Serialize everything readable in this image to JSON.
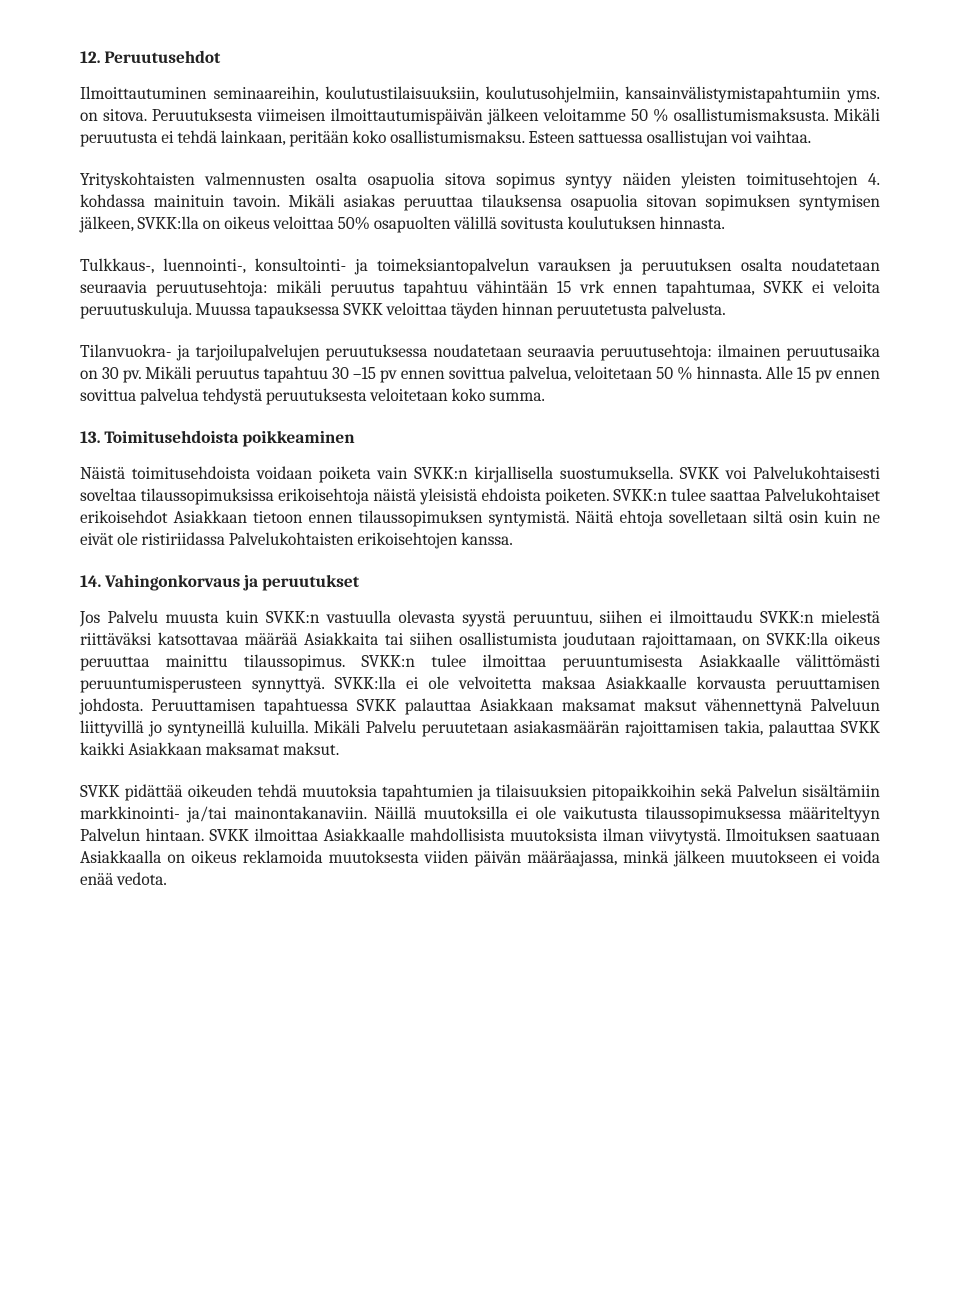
{
  "s12": {
    "heading": "12. Peruutusehdot",
    "p1": "Ilmoittautuminen seminaareihin, koulutustilaisuuksiin, koulutusohjelmiin, kansainvälistymistapahtumiin yms. on sitova. Peruutuksesta viimeisen ilmoittautumispäivän jälkeen veloitamme 50 % osallistumismaksusta. Mikäli peruutusta ei tehdä lainkaan, peritään koko osallistumismaksu. Esteen sattuessa osallistujan voi vaihtaa.",
    "p2": "Yrityskohtaisten valmennusten osalta osapuolia sitova sopimus syntyy näiden yleisten toimitusehtojen 4. kohdassa mainituin tavoin. Mikäli asiakas peruuttaa tilauksensa osapuolia sitovan sopimuksen syntymisen jälkeen, SVKK:lla on oikeus veloittaa 50% osapuolten välillä sovitusta koulutuksen hinnasta.",
    "p3": "Tulkkaus-, luennointi-, konsultointi- ja toimeksiantopalvelun varauksen ja peruutuksen osalta noudatetaan seuraavia peruutusehtoja: mikäli peruutus tapahtuu vähintään 15 vrk ennen tapahtumaa, SVKK ei veloita peruutuskuluja. Muussa tapauksessa SVKK veloittaa täyden hinnan peruutetusta palvelusta.",
    "p4": "Tilanvuokra- ja tarjoilupalvelujen peruutuksessa noudatetaan seuraavia peruutusehtoja: ilmainen peruutusaika on 30 pv. Mikäli peruutus tapahtuu 30 –15 pv ennen sovittua palvelua, veloitetaan 50 % hinnasta. Alle 15 pv ennen sovittua palvelua tehdystä peruutuksesta veloitetaan koko summa."
  },
  "s13": {
    "heading": "13. Toimitusehdoista poikkeaminen",
    "p1": "Näistä toimitusehdoista voidaan poiketa vain SVKK:n kirjallisella suostumuksella. SVKK voi Palvelukohtaisesti soveltaa tilaussopimuksissa erikoisehtoja näistä yleisistä ehdoista poiketen. SVKK:n tulee saattaa Palvelukohtaiset erikoisehdot Asiakkaan tietoon ennen tilaussopimuksen syntymistä. Näitä ehtoja sovelletaan siltä osin kuin ne eivät ole ristiriidassa Palvelukohtaisten erikoisehtojen kanssa."
  },
  "s14": {
    "heading": "14. Vahingonkorvaus ja peruutukset",
    "p1": "Jos Palvelu muusta kuin SVKK:n vastuulla olevasta syystä peruuntuu, siihen ei ilmoittaudu SVKK:n mielestä riittäväksi katsottavaa määrää Asiakkaita tai siihen osallistumista joudutaan rajoittamaan, on SVKK:lla oikeus peruuttaa mainittu tilaussopimus. SVKK:n tulee ilmoittaa peruuntumisesta Asiakkaalle välittömästi peruuntumisperusteen synnyttyä. SVKK:lla ei ole velvoitetta maksaa Asiakkaalle korvausta peruuttamisen johdosta. Peruuttamisen tapahtuessa SVKK palauttaa Asiakkaan maksamat maksut vähennettynä Palveluun liittyvillä jo syntyneillä kuluilla. Mikäli Palvelu peruutetaan asiakasmäärän rajoittamisen takia, palauttaa SVKK kaikki Asiakkaan maksamat maksut.",
    "p2": "SVKK pidättää oikeuden tehdä muutoksia tapahtumien ja tilaisuuksien pitopaikkoihin sekä Palvelun sisältämiin markkinointi- ja/tai mainontakanaviin. Näillä muutoksilla ei ole vaikutusta tilaussopimuksessa määriteltyyn Palvelun hintaan. SVKK ilmoittaa Asiakkaalle mahdollisista muutoksista ilman viivytystä. Ilmoituksen saatuaan Asiakkaalla on oikeus reklamoida muutoksesta viiden päivän määräajassa, minkä jälkeen muutokseen ei voida enää vedota."
  }
}
